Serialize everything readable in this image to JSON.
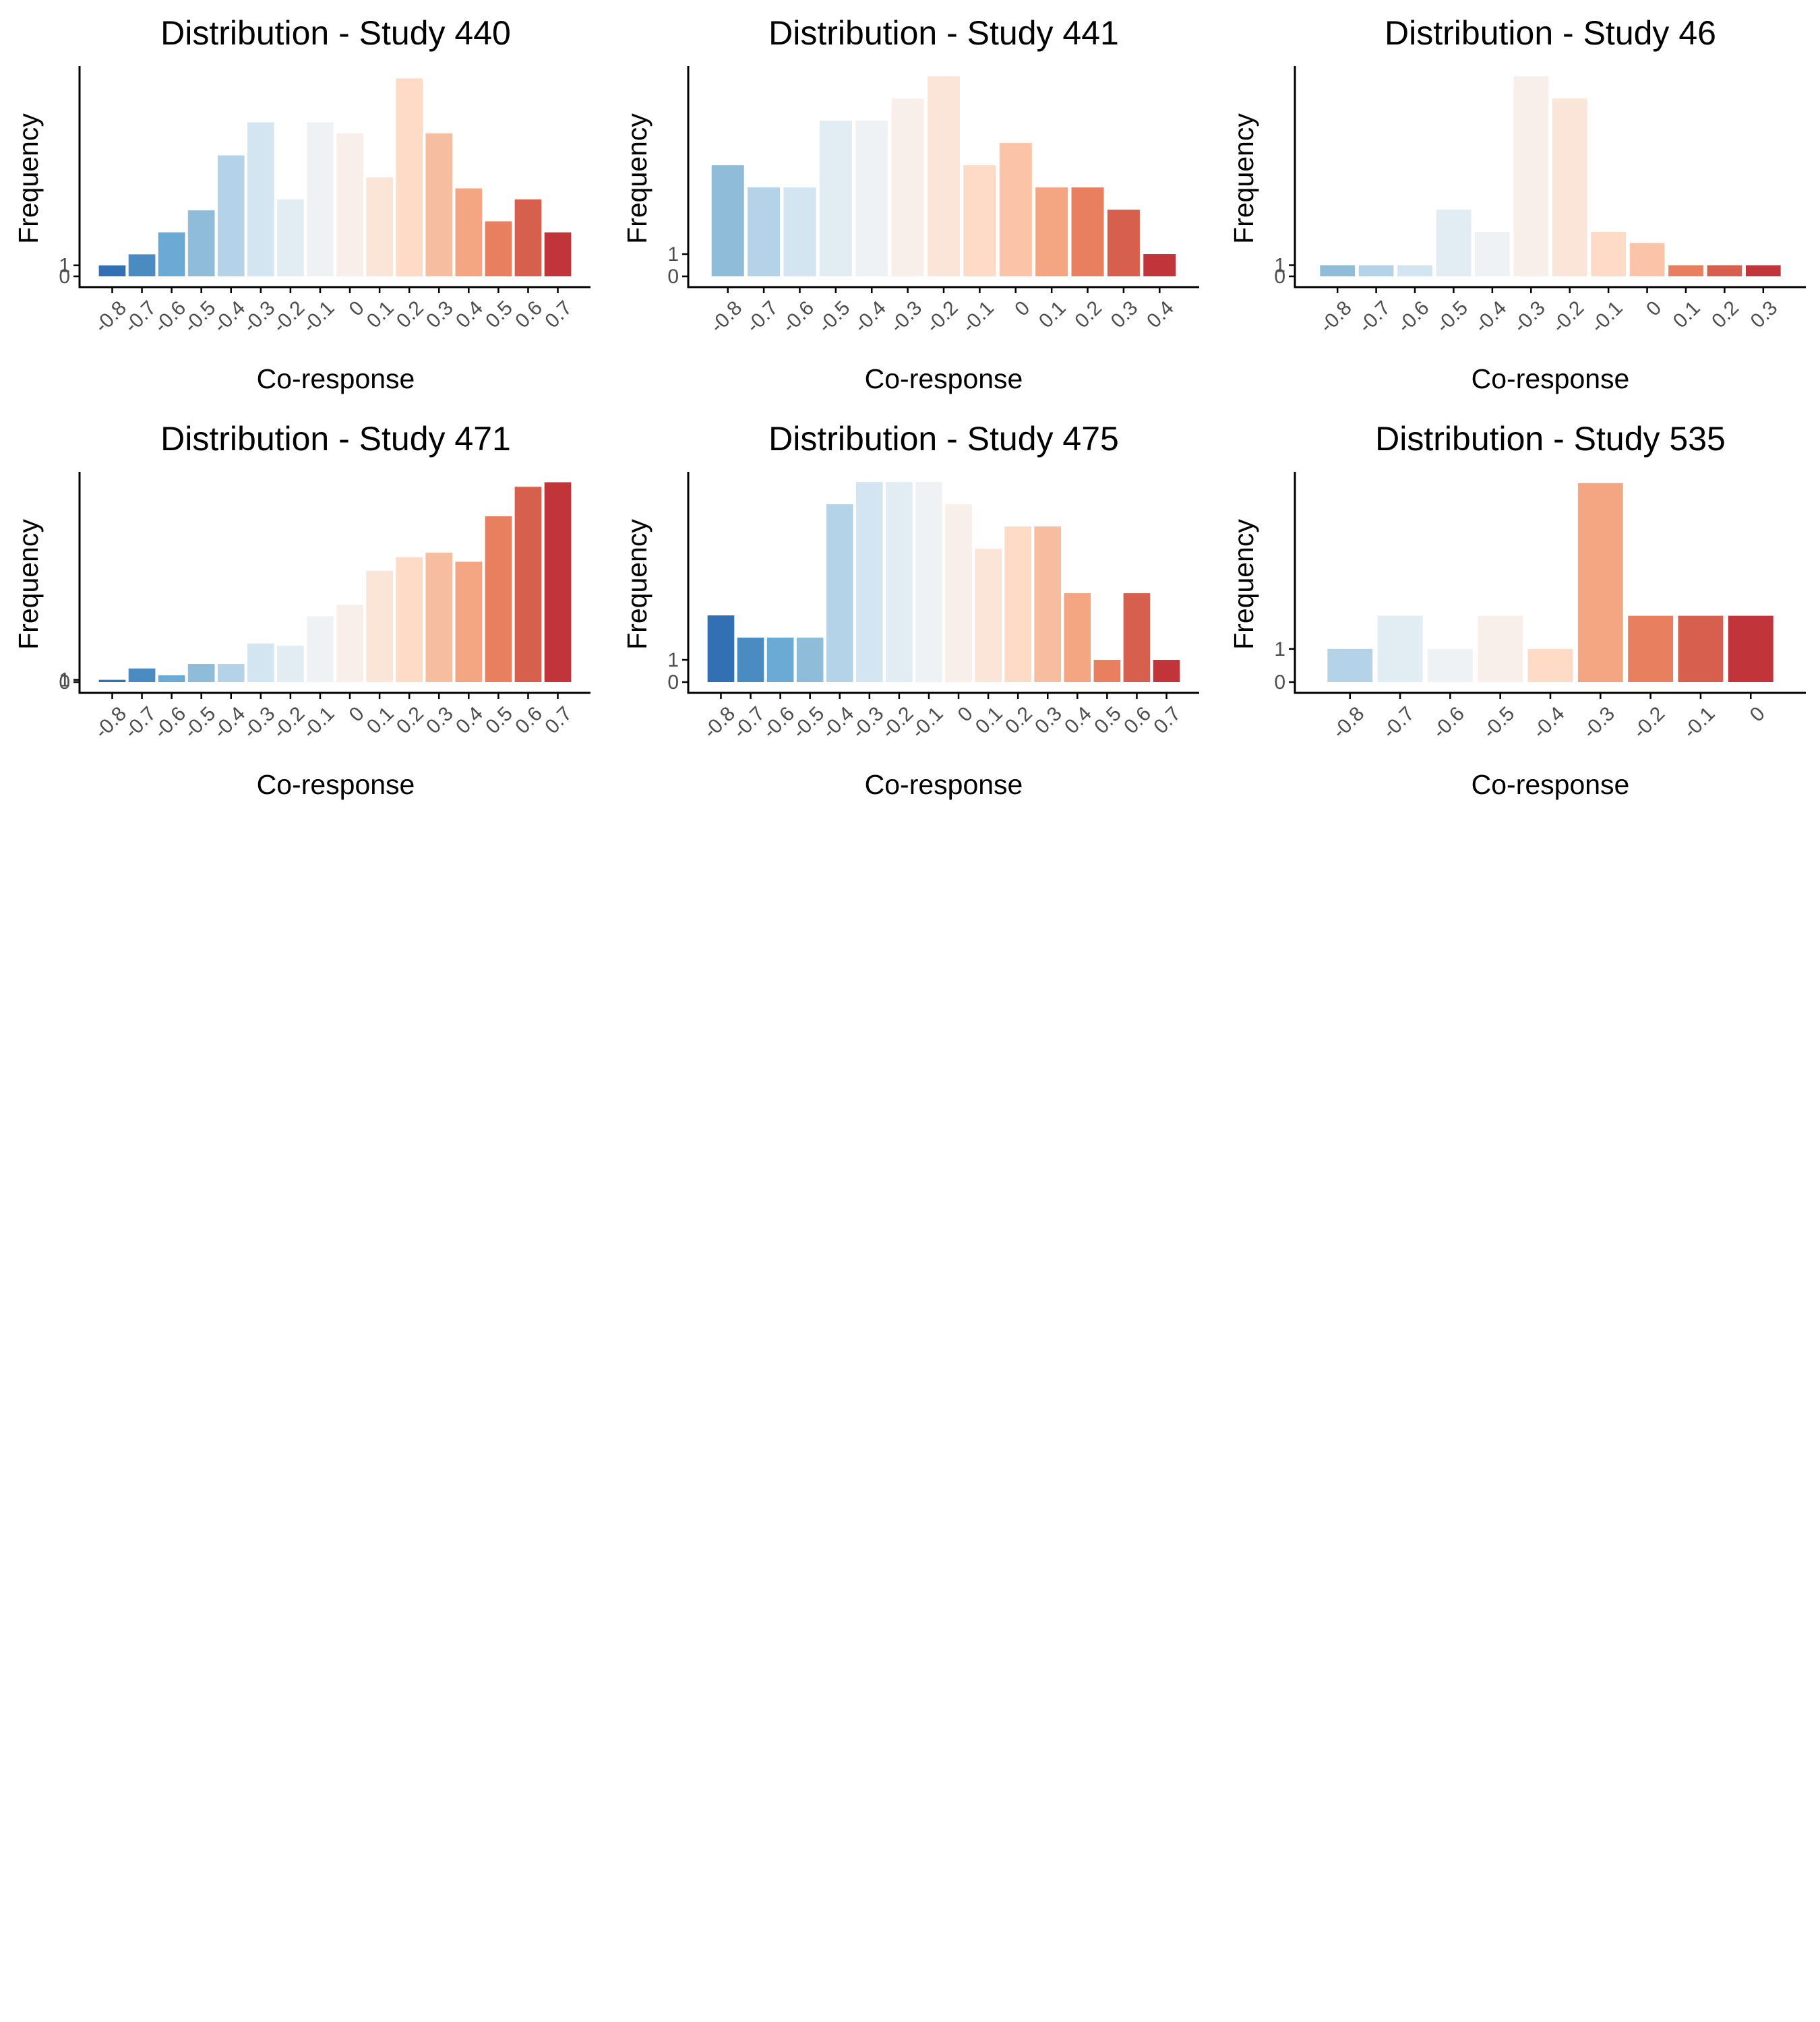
{
  "figure": {
    "background": "#ffffff",
    "axis_color": "#000000",
    "tick_label_color": "#4d4d4d"
  },
  "chart_data": [
    {
      "type": "bar",
      "title": "Distribution - Study 440",
      "xlabel": "Co-response",
      "ylabel": "Frequency",
      "y_ticks": [
        0,
        1
      ],
      "ylim": [
        0,
        19
      ],
      "categories": [
        "-0.8",
        "-0.7",
        "-0.6",
        "-0.5",
        "-0.4",
        "-0.3",
        "-0.2",
        "-0.1",
        "0",
        "0.1",
        "0.2",
        "0.3",
        "0.4",
        "0.5",
        "0.6",
        "0.7"
      ],
      "values": [
        1,
        2,
        4,
        6,
        11,
        14,
        7,
        14,
        13,
        9,
        18,
        13,
        8,
        5,
        7,
        4
      ],
      "colors": [
        "#3270b3",
        "#4a8bc2",
        "#6aaad4",
        "#8fbcd9",
        "#b4d3e8",
        "#d2e5f0",
        "#e2ecf3",
        "#eef2f5",
        "#f8efea",
        "#fbe4d8",
        "#fddbc7",
        "#f7bda0",
        "#f4a582",
        "#e8805f",
        "#d6604d",
        "#c0343a"
      ],
      "grid": false,
      "legend": "none"
    },
    {
      "type": "bar",
      "title": "Distribution - Study 441",
      "xlabel": "Co-response",
      "ylabel": "Frequency",
      "y_ticks": [
        0,
        1
      ],
      "ylim": [
        0,
        9.4
      ],
      "categories": [
        "-0.8",
        "-0.7",
        "-0.6",
        "-0.5",
        "-0.4",
        "-0.3",
        "-0.2",
        "-0.1",
        "0",
        "0.1",
        "0.2",
        "0.3",
        "0.4"
      ],
      "values": [
        5,
        4,
        4,
        7,
        7,
        8,
        9,
        5,
        6,
        4,
        4,
        3,
        1
      ],
      "colors": [
        "#8fbcd9",
        "#b4d3e8",
        "#d2e5f0",
        "#e2ecf3",
        "#eef2f5",
        "#f8efea",
        "#fbe4d8",
        "#fddbc7",
        "#fbc3a8",
        "#f4a582",
        "#e8805f",
        "#d6604d",
        "#c0343a"
      ],
      "grid": false,
      "legend": "none"
    },
    {
      "type": "bar",
      "title": "Distribution - Study 46",
      "xlabel": "Co-response",
      "ylabel": "Frequency",
      "y_ticks": [
        0,
        1
      ],
      "ylim": [
        0,
        18.8
      ],
      "categories": [
        "-0.8",
        "-0.7",
        "-0.6",
        "-0.5",
        "-0.4",
        "-0.3",
        "-0.2",
        "-0.1",
        "0",
        "0.1",
        "0.2",
        "0.3"
      ],
      "values": [
        1,
        1,
        1,
        6,
        4,
        18,
        16,
        4,
        3,
        1,
        1,
        1
      ],
      "colors": [
        "#8fbcd9",
        "#b4d3e8",
        "#d2e5f0",
        "#e2ecf3",
        "#eef2f5",
        "#f8efea",
        "#fbe4d8",
        "#fddbc7",
        "#fbc3a8",
        "#e8805f",
        "#d6604d",
        "#c0343a"
      ],
      "grid": false,
      "legend": "none"
    },
    {
      "type": "bar",
      "title": "Distribution - Study 471",
      "xlabel": "Co-response",
      "ylabel": "Frequency",
      "y_ticks": [
        0,
        1
      ],
      "ylim": [
        0,
        92
      ],
      "categories": [
        "-0.8",
        "-0.7",
        "-0.6",
        "-0.5",
        "-0.4",
        "-0.3",
        "-0.2",
        "-0.1",
        "0",
        "0.1",
        "0.2",
        "0.3",
        "0.4",
        "0.5",
        "0.6",
        "0.7"
      ],
      "values": [
        1,
        6,
        3,
        8,
        8,
        17,
        16,
        29,
        34,
        49,
        55,
        57,
        53,
        73,
        86,
        88
      ],
      "colors": [
        "#3270b3",
        "#4a8bc2",
        "#6aaad4",
        "#8fbcd9",
        "#b4d3e8",
        "#d2e5f0",
        "#e2ecf3",
        "#eef2f5",
        "#f8efea",
        "#fbe4d8",
        "#fddbc7",
        "#f7bda0",
        "#f4a582",
        "#e8805f",
        "#d6604d",
        "#c0343a"
      ],
      "grid": false,
      "legend": "none"
    },
    {
      "type": "bar",
      "title": "Distribution - Study 475",
      "xlabel": "Co-response",
      "ylabel": "Frequency",
      "y_ticks": [
        0,
        1
      ],
      "ylim": [
        0,
        9.4
      ],
      "categories": [
        "-0.8",
        "-0.7",
        "-0.6",
        "-0.5",
        "-0.4",
        "-0.3",
        "-0.2",
        "-0.1",
        "0",
        "0.1",
        "0.2",
        "0.3",
        "0.4",
        "0.5",
        "0.6",
        "0.7"
      ],
      "values": [
        3,
        2,
        2,
        2,
        8,
        9,
        9,
        9,
        8,
        6,
        7,
        7,
        4,
        1,
        4,
        1
      ],
      "colors": [
        "#3270b3",
        "#4a8bc2",
        "#6aaad4",
        "#8fbcd9",
        "#b4d3e8",
        "#d2e5f0",
        "#e2ecf3",
        "#eef2f5",
        "#f8efea",
        "#fbe4d8",
        "#fddbc7",
        "#f7bda0",
        "#f4a582",
        "#e8805f",
        "#d6604d",
        "#c0343a"
      ],
      "grid": false,
      "legend": "none"
    },
    {
      "type": "bar",
      "title": "Distribution - Study 535",
      "xlabel": "Co-response",
      "ylabel": "Frequency",
      "y_ticks": [
        0,
        1
      ],
      "ylim": [
        0,
        6.3
      ],
      "categories": [
        "-0.8",
        "-0.7",
        "-0.6",
        "-0.5",
        "-0.4",
        "-0.3",
        "-0.2",
        "-0.1",
        "0"
      ],
      "values": [
        1,
        2,
        1,
        2,
        1,
        6,
        2,
        2,
        2
      ],
      "colors": [
        "#b4d3e8",
        "#e2ecf3",
        "#eef2f5",
        "#f8efea",
        "#fddbc7",
        "#f4a582",
        "#e8805f",
        "#d6604d",
        "#c0343a"
      ],
      "grid": false,
      "legend": "none"
    }
  ]
}
